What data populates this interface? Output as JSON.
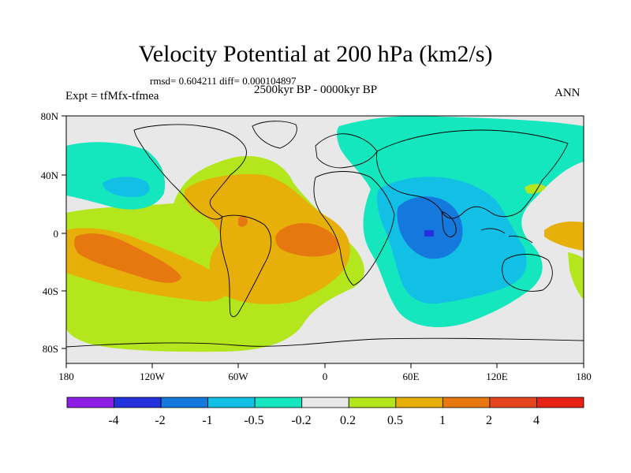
{
  "title": "Velocity Potential at 200 hPa (km2/s)",
  "stats": "rmsd= 0.604211 diff= 0.000104897",
  "experiment": "Expt = tfMfx-tfmea",
  "period": "2500kyr BP - 0000kyr BP",
  "season": "ANN",
  "lat_labels": [
    "80N",
    "40N",
    "0",
    "40S",
    "80S"
  ],
  "lon_labels": [
    "180",
    "120W",
    "60W",
    "0",
    "60E",
    "120E",
    "180"
  ],
  "colorbar": {
    "labels": [
      "-4",
      "-2",
      "-1",
      "-0.5",
      "-0.2",
      "0.2",
      "0.5",
      "1",
      "2",
      "4"
    ],
    "colors": [
      "#8c1ee6",
      "#2332dc",
      "#1478dc",
      "#12c0e6",
      "#14e6be",
      "#e8e8e8",
      "#b4e61e",
      "#e6af0a",
      "#e6780f",
      "#e6461e",
      "#e62314"
    ]
  },
  "palette": {
    "neutral": "#e8e8e8",
    "pos1": "#b4e61e",
    "pos2": "#e6af0a",
    "pos3": "#e6780f",
    "neg1": "#14e6be",
    "neg2": "#12c0e6",
    "neg3": "#1478dc",
    "neg4": "#2332dc"
  }
}
